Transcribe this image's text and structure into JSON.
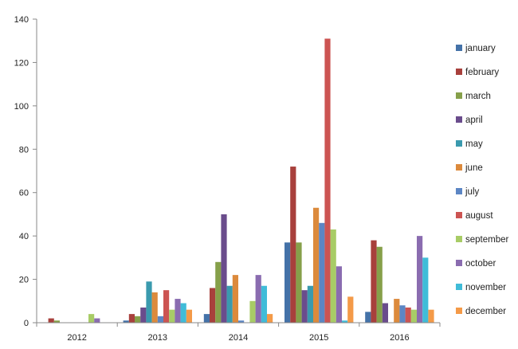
{
  "chart_data": {
    "type": "bar",
    "title": "",
    "xlabel": "",
    "ylabel": "",
    "ylim": [
      0,
      140
    ],
    "yticks": [
      0,
      20,
      40,
      60,
      80,
      100,
      120,
      140
    ],
    "grid": false,
    "legend_position": "right",
    "categories": [
      "2012",
      "2013",
      "2014",
      "2015",
      "2016"
    ],
    "series": [
      {
        "name": "january",
        "color": "#4472A8",
        "values": [
          0,
          1,
          4,
          37,
          5
        ]
      },
      {
        "name": "february",
        "color": "#A8403C",
        "values": [
          2,
          4,
          16,
          72,
          38
        ]
      },
      {
        "name": "march",
        "color": "#86A04A",
        "values": [
          1,
          3,
          28,
          37,
          35
        ]
      },
      {
        "name": "april",
        "color": "#6A4C8C",
        "values": [
          0,
          7,
          50,
          15,
          9
        ]
      },
      {
        "name": "may",
        "color": "#3A9AAE",
        "values": [
          0,
          19,
          17,
          17,
          0
        ]
      },
      {
        "name": "june",
        "color": "#DC8A3C",
        "values": [
          0,
          14,
          22,
          53,
          11
        ]
      },
      {
        "name": "july",
        "color": "#5C86C4",
        "values": [
          0,
          3,
          1,
          46,
          8
        ]
      },
      {
        "name": "august",
        "color": "#CC5452",
        "values": [
          0,
          15,
          0,
          131,
          7
        ]
      },
      {
        "name": "september",
        "color": "#A8CC66",
        "values": [
          4,
          6,
          10,
          43,
          6
        ]
      },
      {
        "name": "october",
        "color": "#8A6CB0",
        "values": [
          2,
          11,
          22,
          26,
          40
        ]
      },
      {
        "name": "november",
        "color": "#40BCD8",
        "values": [
          0,
          9,
          17,
          1,
          30
        ]
      },
      {
        "name": "december",
        "color": "#F49A48",
        "values": [
          0,
          6,
          4,
          12,
          6
        ]
      }
    ]
  }
}
